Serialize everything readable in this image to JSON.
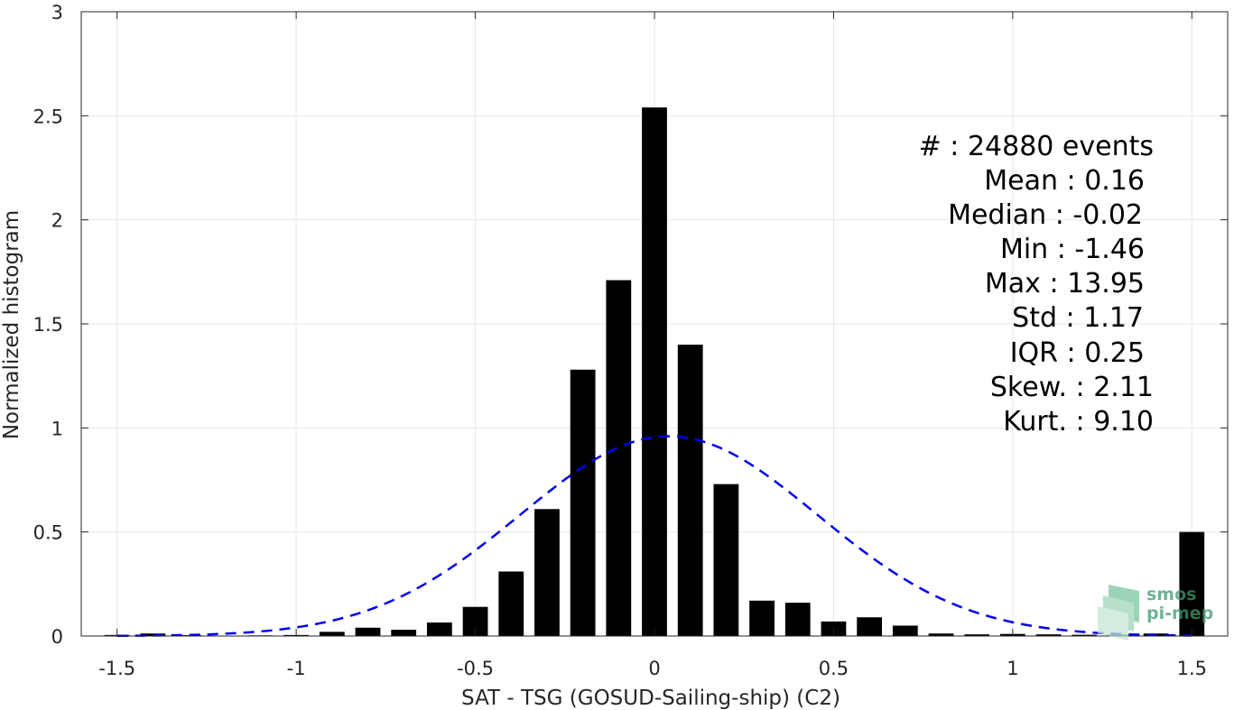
{
  "chart_data": {
    "type": "bar",
    "xlabel": "SAT - TSG (GOSUD-Sailing-ship) (C2)",
    "ylabel": "Normalized histogram",
    "xlim": [
      -1.6,
      1.6
    ],
    "ylim": [
      0,
      3
    ],
    "x_ticks": [
      "-1.5",
      "-1",
      "-0.5",
      "0",
      "0.5",
      "1",
      "1.5"
    ],
    "y_ticks": [
      "0",
      "0.5",
      "1",
      "1.5",
      "2",
      "2.5",
      "3"
    ],
    "grid": true,
    "bins": [
      {
        "x": -1.5,
        "value": 0.005
      },
      {
        "x": -1.4,
        "value": 0.012
      },
      {
        "x": -1.3,
        "value": 0.004
      },
      {
        "x": -1.1,
        "value": 0.003
      },
      {
        "x": -1.0,
        "value": 0.005
      },
      {
        "x": -0.9,
        "value": 0.02
      },
      {
        "x": -0.8,
        "value": 0.04
      },
      {
        "x": -0.7,
        "value": 0.03
      },
      {
        "x": -0.6,
        "value": 0.065
      },
      {
        "x": -0.5,
        "value": 0.14
      },
      {
        "x": -0.4,
        "value": 0.31
      },
      {
        "x": -0.3,
        "value": 0.61
      },
      {
        "x": -0.2,
        "value": 1.28
      },
      {
        "x": -0.1,
        "value": 1.71
      },
      {
        "x": 0.0,
        "value": 2.54
      },
      {
        "x": 0.1,
        "value": 1.4
      },
      {
        "x": 0.2,
        "value": 0.73
      },
      {
        "x": 0.3,
        "value": 0.17
      },
      {
        "x": 0.4,
        "value": 0.16
      },
      {
        "x": 0.5,
        "value": 0.07
      },
      {
        "x": 0.6,
        "value": 0.09
      },
      {
        "x": 0.7,
        "value": 0.05
      },
      {
        "x": 0.8,
        "value": 0.012
      },
      {
        "x": 0.9,
        "value": 0.008
      },
      {
        "x": 1.0,
        "value": 0.01
      },
      {
        "x": 1.1,
        "value": 0.008
      },
      {
        "x": 1.2,
        "value": 0.006
      },
      {
        "x": 1.3,
        "value": 0.006
      },
      {
        "x": 1.4,
        "value": 0.012
      },
      {
        "x": 1.5,
        "value": 0.5
      }
    ],
    "bar_width": 0.07,
    "bar_color": "#000000",
    "fit_curve": {
      "style": "dashed",
      "color": "#0000ee",
      "mean": 0.04,
      "std": 0.415,
      "peak": 0.96
    }
  },
  "stats": {
    "events": "#  : 24880 events",
    "mean": "Mean : 0.16",
    "median": "Median : -0.02",
    "min": "Min : -1.46",
    "max": "Max : 13.95",
    "std": "Std : 1.17",
    "iqr": "IQR : 0.25",
    "skew": "Skew. : 2.11",
    "kurt": "Kurt. : 9.10"
  },
  "logo": {
    "line1": "smos",
    "line2": "pi-mep",
    "color": "#3e9a6e"
  }
}
